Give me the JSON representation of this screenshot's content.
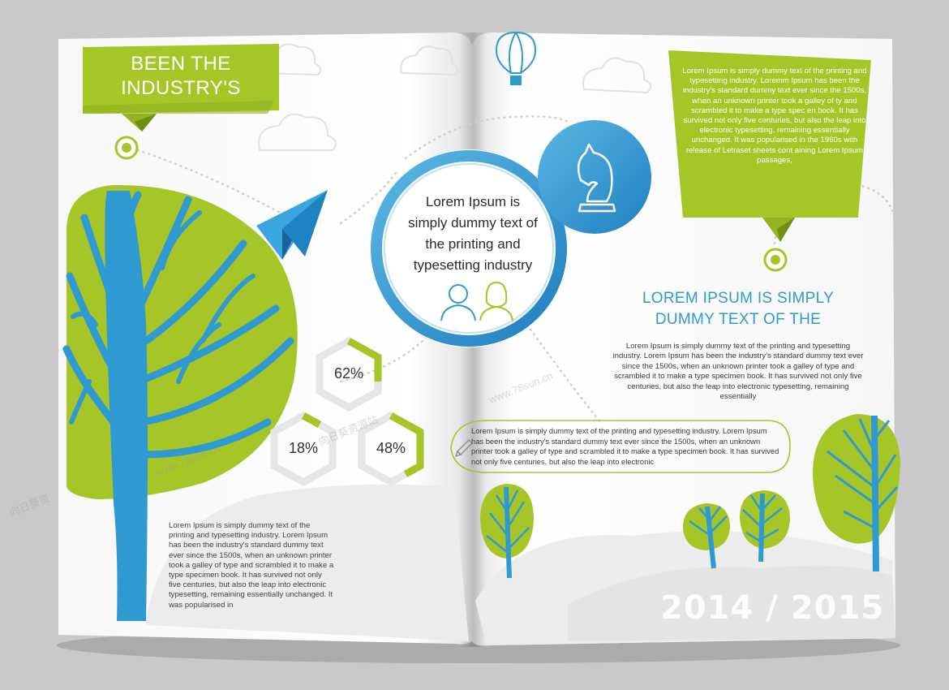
{
  "left_page": {
    "banner_lines": [
      "BEEN THE",
      "INDUSTRY'S"
    ],
    "percentages": [
      "62%",
      "18%",
      "48%"
    ],
    "body_text": "Lorem Ipsum is simply dummy text of the printing and typesetting industry. Lorem Ipsum has been the industry's standard dummy text ever since the 1500s, when an unknown printer took a galley of type and scrambled it to make a type specimen book. It has survived not only five centuries, but also the leap into electronic typesetting, remaining essentially unchanged. It was popularised in"
  },
  "center": {
    "circle_lines": [
      "Lorem Ipsum is",
      "simply dummy text of",
      "the printing and",
      "typesetting industry"
    ]
  },
  "right_page": {
    "callout_text": "Lorem Ipsum is simply dummy text of the printing and typesetting industry. Loremm Ipsum has been the industry's standard dummy text ever since the 1500s, when an unknown printer took a galley of ty and scrambled it to make a type spec en book. It has survived not only five centuries, but also the leap into electronic typesetting, remaining essentially unchanged. It was popularised in the 1960s with release of Letraset sheets cont aining Lorem Ipsum passages,",
    "heading_lines": [
      "LOREM IPSUM IS SIMPLY",
      "DUMMY TEXT OF THE"
    ],
    "body_text": "Lorem Ipsum is simply dummy text of the printing and typesetting industry. Lorem Ipsum has been the industry's standard dummy text ever since the 1500s, when an unknown printer took a galley of type and scrambled it to make a type specimen book. It has survived not only five centuries, but also the leap into electronic typesetting, remaining essentially",
    "pill_text": "Lorem Ipsum is simply dummy text of the printing and typesetting industry. Lorem Ipsum has been the industry's standard dummy text ever since the 1500s, when an unknown printer took a galley of type and scrambled it to make a type specimen book. It has survived not only five centuries, but also the leap into electronic",
    "year_text": "2014 / 2015"
  },
  "watermarks": [
    "向日葵资",
    "www.78sun.cn",
    "www.78sun.cn",
    "向日葵资源站"
  ],
  "icons": [
    "cloud-icon",
    "hot-air-balloon-icon",
    "paper-plane-icon",
    "chess-knight-icon",
    "male-profile-icon",
    "female-profile-icon",
    "pencil-icon"
  ],
  "colors": {
    "green": "#a6c628",
    "blue": "#2f9ad2",
    "light_gray": "#e7e7e9"
  }
}
